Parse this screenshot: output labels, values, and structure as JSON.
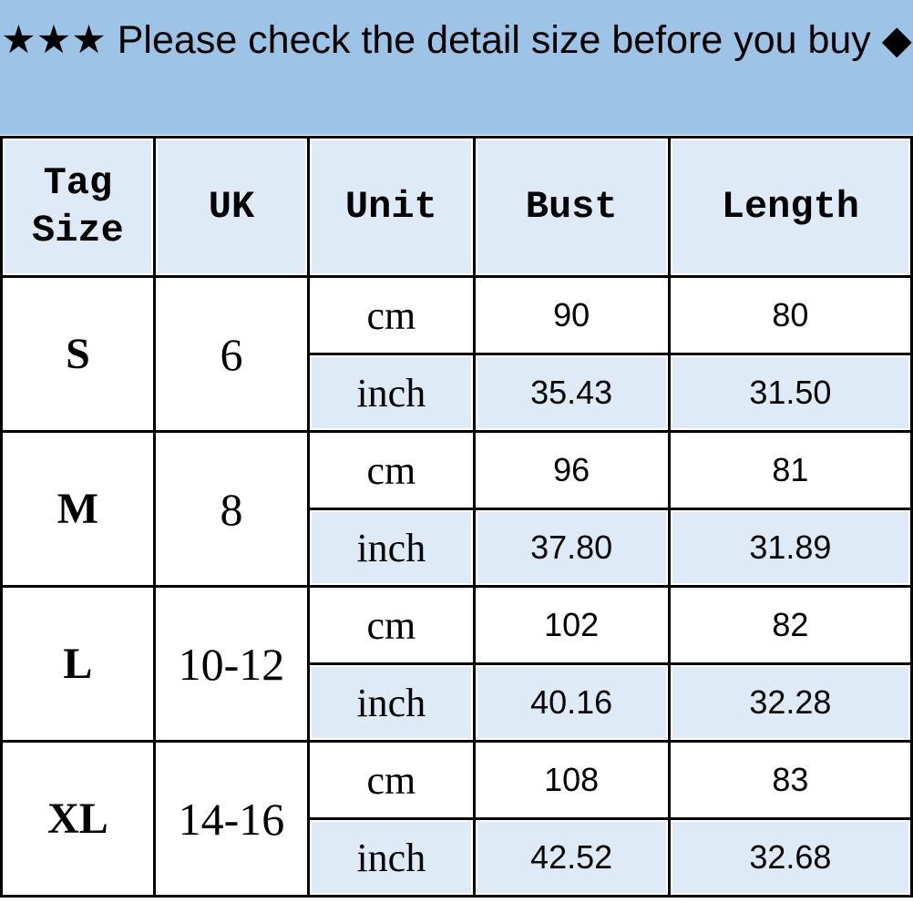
{
  "banner": {
    "text": "★★★ Please check the detail size before you buy ◆"
  },
  "headers": {
    "tag_size": "Tag Size",
    "uk": "UK",
    "unit": "Unit",
    "bust": "Bust",
    "length": "Length"
  },
  "rows": [
    {
      "size": "S",
      "uk": "6",
      "cm": {
        "unit": "cm",
        "bust": "90",
        "length": "80"
      },
      "inch": {
        "unit": "inch",
        "bust": "35.43",
        "length": "31.50"
      }
    },
    {
      "size": "M",
      "uk": "8",
      "cm": {
        "unit": "cm",
        "bust": "96",
        "length": "81"
      },
      "inch": {
        "unit": "inch",
        "bust": "37.80",
        "length": "31.89"
      }
    },
    {
      "size": "L",
      "uk": "10-12",
      "cm": {
        "unit": "cm",
        "bust": "102",
        "length": "82"
      },
      "inch": {
        "unit": "inch",
        "bust": "40.16",
        "length": "32.28"
      }
    },
    {
      "size": "XL",
      "uk": "14-16",
      "cm": {
        "unit": "cm",
        "bust": "108",
        "length": "83"
      },
      "inch": {
        "unit": "inch",
        "bust": "42.52",
        "length": "32.68"
      }
    }
  ],
  "colors": {
    "banner": "#9dc3e6",
    "header_cells": "#deebf7",
    "inch_rows": "#deebf7",
    "border": "#000000"
  }
}
